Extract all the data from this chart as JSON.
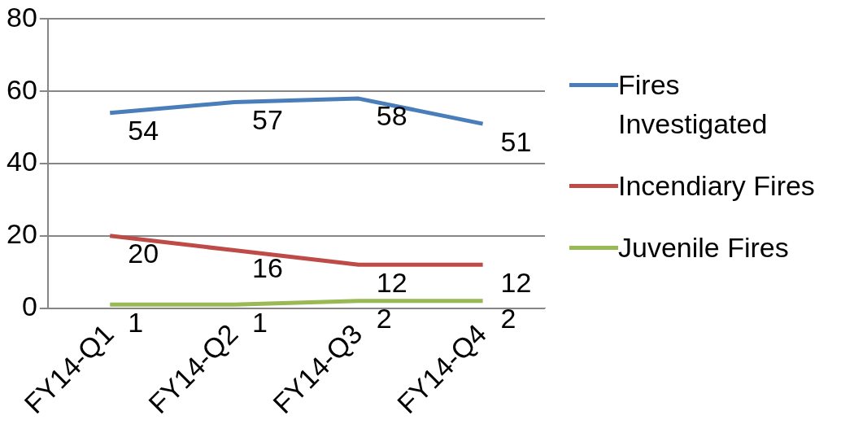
{
  "chart_data": {
    "type": "line",
    "categories": [
      "FY14-Q1",
      "FY14-Q2",
      "FY14-Q3",
      "FY14-Q4"
    ],
    "series": [
      {
        "name": "Fires Investigated",
        "color": "#4a7ebb",
        "values": [
          54,
          57,
          58,
          51
        ]
      },
      {
        "name": "Incendiary Fires",
        "color": "#be4b48",
        "values": [
          20,
          16,
          12,
          12
        ]
      },
      {
        "name": "Juvenile Fires",
        "color": "#98b954",
        "values": [
          1,
          1,
          2,
          2
        ]
      }
    ],
    "ylim": [
      0,
      80
    ],
    "yticks": [
      0,
      20,
      40,
      60,
      80
    ],
    "grid": "y",
    "legend": "right",
    "data_labels": true,
    "marker": "none"
  }
}
